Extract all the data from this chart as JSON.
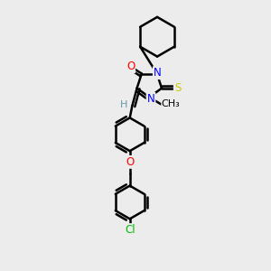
{
  "bg_color": "#ececec",
  "bond_color": "#000000",
  "line_width": 1.8,
  "atom_colors": {
    "O": "#ff0000",
    "N": "#0000ff",
    "S": "#cccc00",
    "Cl": "#00bb00",
    "H": "#6699aa",
    "C": "#000000"
  },
  "font_size": 8.5
}
